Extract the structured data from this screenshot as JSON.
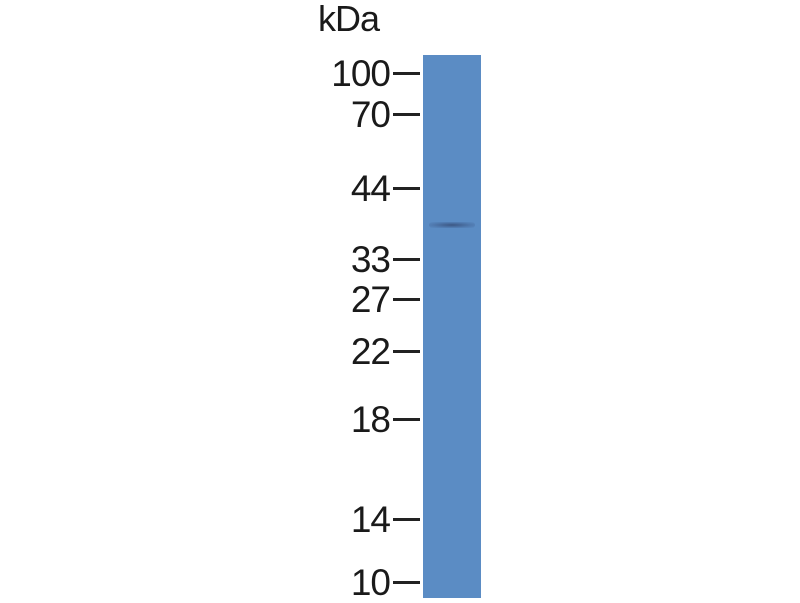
{
  "unit_label": "kDa",
  "markers": [
    {
      "label": "100",
      "kda": 100
    },
    {
      "label": "70",
      "kda": 70
    },
    {
      "label": "44",
      "kda": 44
    },
    {
      "label": "33",
      "kda": 33
    },
    {
      "label": "27",
      "kda": 27
    },
    {
      "label": "22",
      "kda": 22
    },
    {
      "label": "18",
      "kda": 18
    },
    {
      "label": "14",
      "kda": 14
    },
    {
      "label": "10",
      "kda": 10
    }
  ],
  "lane_color": "#5b8cc4",
  "bands": [
    {
      "kda": 38
    }
  ]
}
